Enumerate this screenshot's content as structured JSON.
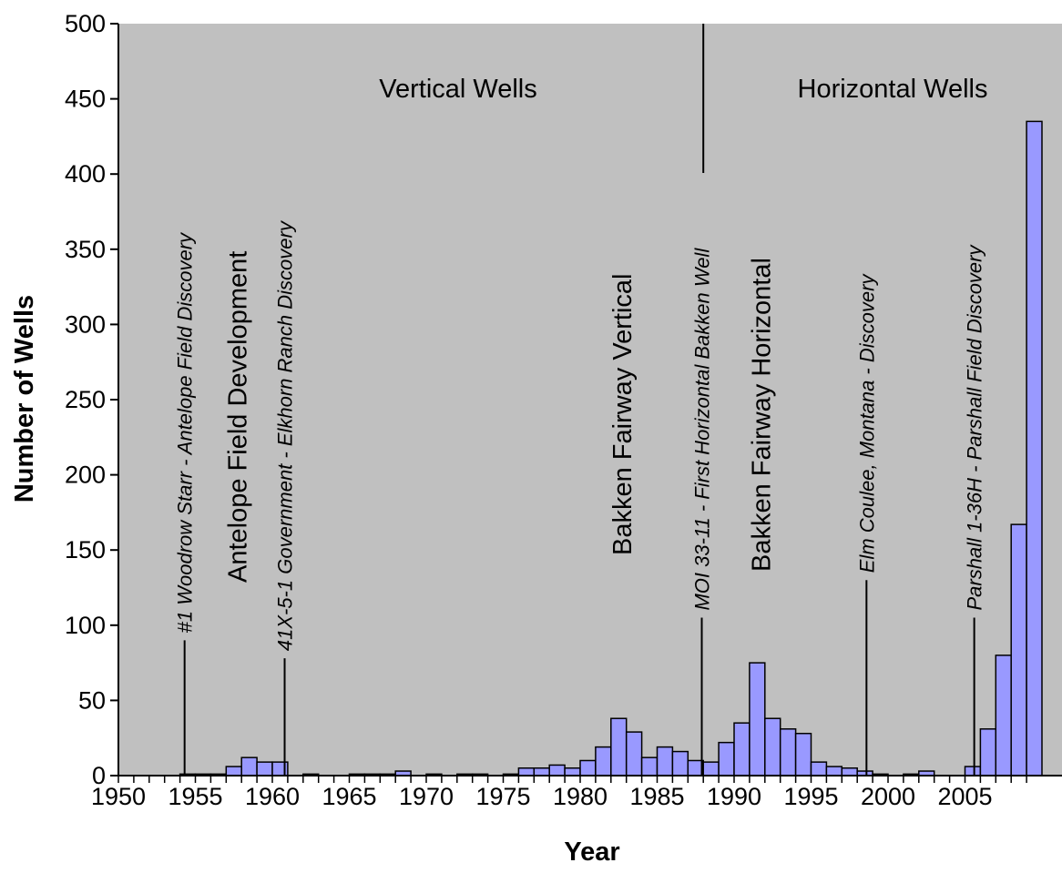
{
  "chart_data": {
    "type": "bar",
    "title": "",
    "xlabel": "Year",
    "ylabel": "Number of Wells",
    "xlim": [
      1950,
      2009
    ],
    "ylim": [
      0,
      500
    ],
    "y_ticks": [
      0,
      50,
      100,
      150,
      200,
      250,
      300,
      350,
      400,
      450,
      500
    ],
    "x_ticks": [
      1950,
      1955,
      1960,
      1965,
      1970,
      1975,
      1980,
      1985,
      1990,
      1995,
      2000,
      2005
    ],
    "grid": false,
    "plot_background": "#c0c0c0",
    "bar_color": "#9999ff",
    "bar_edge_color": "#000000",
    "years": [
      1950,
      1951,
      1952,
      1953,
      1954,
      1955,
      1956,
      1957,
      1958,
      1959,
      1960,
      1961,
      1962,
      1963,
      1964,
      1965,
      1966,
      1967,
      1968,
      1969,
      1970,
      1971,
      1972,
      1973,
      1974,
      1975,
      1976,
      1977,
      1978,
      1979,
      1980,
      1981,
      1982,
      1983,
      1984,
      1985,
      1986,
      1987,
      1988,
      1989,
      1990,
      1991,
      1992,
      1993,
      1994,
      1995,
      1996,
      1997,
      1998,
      1999,
      2000,
      2001,
      2002,
      2003,
      2004,
      2005,
      2006,
      2007,
      2008
    ],
    "values": [
      0,
      0,
      0,
      0,
      1,
      1,
      1,
      6,
      12,
      9,
      9,
      0,
      1,
      0,
      0,
      1,
      1,
      1,
      3,
      0,
      1,
      0,
      1,
      1,
      0,
      1,
      5,
      5,
      7,
      5,
      10,
      19,
      38,
      29,
      12,
      19,
      16,
      10,
      9,
      22,
      35,
      75,
      38,
      31,
      28,
      9,
      6,
      5,
      3,
      1,
      0,
      1,
      3,
      0,
      0,
      6,
      31,
      80,
      167
    ],
    "out_of_range_bar": {
      "year": 2009,
      "value": 435
    },
    "regions": [
      {
        "label": "Vertical Wells",
        "divider_year": 1988
      },
      {
        "label": "Horizontal Wells"
      }
    ],
    "phase_labels": [
      {
        "label": "Antelope Field Development",
        "year": 1958
      },
      {
        "label": "Bakken Fairway Vertical",
        "year": 1983
      },
      {
        "label": "Bakken Fairway Horizontal",
        "year": 1992
      }
    ],
    "events": [
      {
        "label": "#1 Woodrow Starr - Antelope Field Discovery",
        "year": 1954.3,
        "line_top": 90
      },
      {
        "label": "41X-5-1 Government - Elkhorn Ranch Discovery",
        "year": 1960.8,
        "line_top": 78
      },
      {
        "label": "MOI 33-11 - First Horizontal Bakken Well",
        "year": 1987.9,
        "line_top": 105
      },
      {
        "label": "Elm Coulee, Montana - Discovery",
        "year": 1998.6,
        "line_top": 130
      },
      {
        "label": "Parshall 1-36H - Parshall Field Discovery",
        "year": 2005.6,
        "line_top": 105
      }
    ]
  }
}
